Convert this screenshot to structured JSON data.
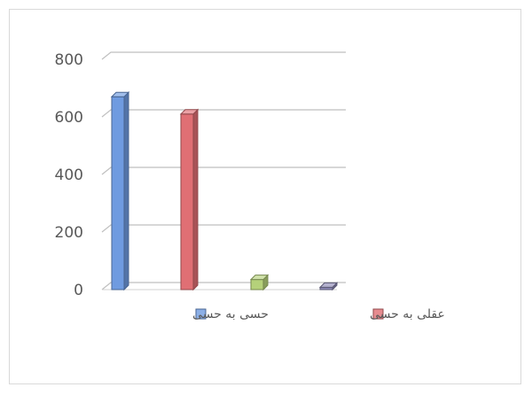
{
  "chart_data": {
    "type": "bar",
    "style": "3d-column",
    "y_ticks": [
      0,
      200,
      400,
      600,
      800
    ],
    "ylim": [
      0,
      800
    ],
    "grid": true,
    "legend_position": "bottom",
    "series": [
      {
        "name": "حسی به حسی",
        "values": [
          670
        ],
        "color": "#6f9be0"
      },
      {
        "name": "عقلی به حسی",
        "values": [
          610
        ],
        "color": "#e06f74"
      },
      {
        "values": [
          35
        ],
        "color": "#b5d17a"
      },
      {
        "values": [
          8
        ],
        "color": "#8b87b3"
      }
    ]
  }
}
